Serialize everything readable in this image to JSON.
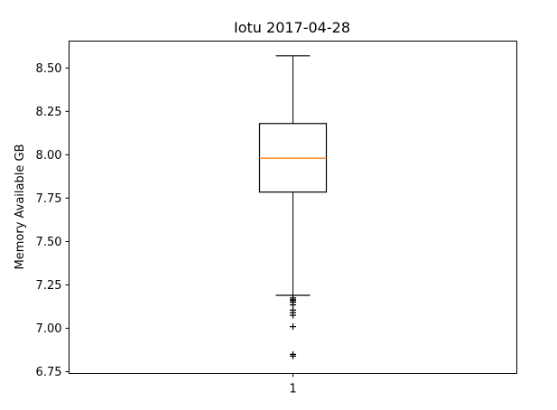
{
  "chart_data": {
    "type": "box",
    "title": "Iotu 2017-04-28",
    "xlabel": "",
    "ylabel": "Memory Available GB",
    "categories": [
      "1"
    ],
    "ylim": [
      6.74,
      8.655
    ],
    "yticks": [
      6.75,
      7.0,
      7.25,
      7.5,
      7.75,
      8.0,
      8.25,
      8.5
    ],
    "ytick_labels": [
      "6.75",
      "7.00",
      "7.25",
      "7.50",
      "7.75",
      "8.00",
      "8.25",
      "8.50"
    ],
    "grid": false,
    "box": {
      "whisker_low": 7.19,
      "q1": 7.785,
      "median": 7.98,
      "q3": 8.18,
      "whisker_high": 8.57,
      "outliers": [
        7.175,
        7.165,
        7.16,
        7.15,
        7.135,
        7.105,
        7.09,
        7.075,
        7.01,
        6.85,
        6.84
      ]
    },
    "colors": {
      "box": "#000000",
      "median": "#ff7f0e",
      "outlier": "#000000"
    }
  }
}
